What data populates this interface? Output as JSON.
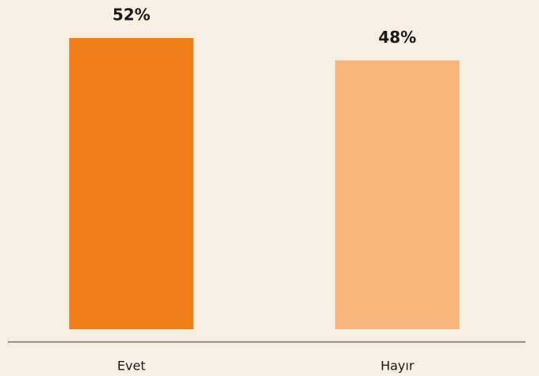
{
  "chart_data": {
    "type": "bar",
    "categories": [
      "Evet",
      "Hayır"
    ],
    "values": [
      52,
      48
    ],
    "value_labels": [
      "52%",
      "48%"
    ],
    "colors": [
      "#f07f1a",
      "#f7b77a"
    ]
  }
}
